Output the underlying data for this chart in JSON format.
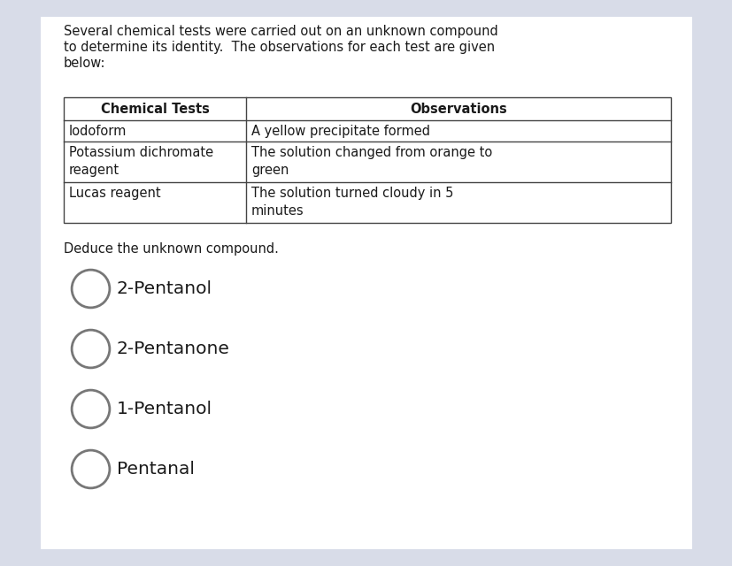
{
  "bg_color": "#d8dce8",
  "content_bg": "#ffffff",
  "intro_text_lines": [
    "Several chemical tests were carried out on an unknown compound",
    "to determine its identity.  The observations for each test are given",
    "below:"
  ],
  "table_header": [
    "Chemical Tests",
    "Observations"
  ],
  "table_rows": [
    [
      "Iodoform",
      "A yellow precipitate formed"
    ],
    [
      "Potassium dichromate\nreagent",
      "The solution changed from orange to\ngreen"
    ],
    [
      "Lucas reagent",
      "The solution turned cloudy in 5\nminutes"
    ]
  ],
  "deduce_text": "Deduce the unknown compound.",
  "options": [
    "2-Pentanol",
    "2-Pentanone",
    "1-Pentanol",
    "Pentanal"
  ],
  "font_size_intro": 10.5,
  "font_size_table_header": 10.5,
  "font_size_table_body": 10.5,
  "font_size_deduce": 10.5,
  "font_size_options": 14.5,
  "text_color": "#1a1a1a",
  "table_border_color": "#444444",
  "circle_color": "#777777",
  "circle_lw": 2.0
}
